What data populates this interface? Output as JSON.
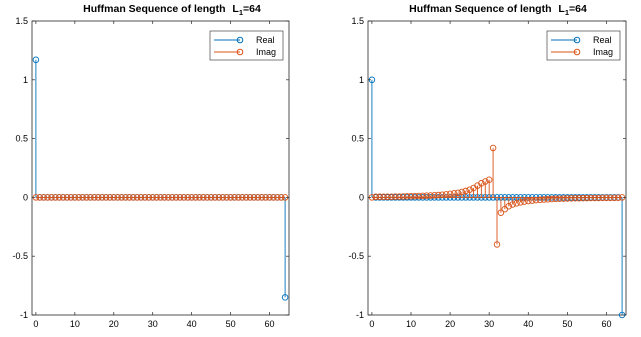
{
  "colors": {
    "real": "#0072BD",
    "imag": "#D95319",
    "axis": "#262626"
  },
  "chart_data": [
    {
      "type": "stem",
      "title": "Huffman Sequence of length",
      "title_symbol": "L",
      "title_subscript": "1",
      "title_suffix": "=64",
      "xlim": [
        -1,
        65
      ],
      "ylim": [
        -1,
        1.5
      ],
      "xticks": [
        0,
        10,
        20,
        30,
        40,
        50,
        60
      ],
      "yticks": [
        -1,
        -0.5,
        0,
        0.5,
        1,
        1.5
      ],
      "xtick_labels": [
        "0",
        "10",
        "20",
        "30",
        "40",
        "50",
        "60"
      ],
      "ytick_labels": [
        "-1",
        "-0.5",
        "0",
        "0.5",
        "1",
        "1.5"
      ],
      "legend": {
        "position": "top-right",
        "entries": [
          "Real",
          "Imag"
        ]
      },
      "x": [
        0,
        1,
        2,
        3,
        4,
        5,
        6,
        7,
        8,
        9,
        10,
        11,
        12,
        13,
        14,
        15,
        16,
        17,
        18,
        19,
        20,
        21,
        22,
        23,
        24,
        25,
        26,
        27,
        28,
        29,
        30,
        31,
        32,
        33,
        34,
        35,
        36,
        37,
        38,
        39,
        40,
        41,
        42,
        43,
        44,
        45,
        46,
        47,
        48,
        49,
        50,
        51,
        52,
        53,
        54,
        55,
        56,
        57,
        58,
        59,
        60,
        61,
        62,
        63,
        64
      ],
      "series": [
        {
          "name": "Real",
          "values": [
            1.17,
            0,
            0,
            0,
            0,
            0,
            0,
            0,
            0,
            0,
            0,
            0,
            0,
            0,
            0,
            0,
            0,
            0,
            0,
            0,
            0,
            0,
            0,
            0,
            0,
            0,
            0,
            0,
            0,
            0,
            0,
            0,
            0,
            0,
            0,
            0,
            0,
            0,
            0,
            0,
            0,
            0,
            0,
            0,
            0,
            0,
            0,
            0,
            0,
            0,
            0,
            0,
            0,
            0,
            0,
            0,
            0,
            0,
            0,
            0,
            0,
            0,
            0,
            0,
            -0.85
          ]
        },
        {
          "name": "Imag",
          "values": [
            0,
            0,
            0,
            0,
            0,
            0,
            0,
            0,
            0,
            0,
            0,
            0,
            0,
            0,
            0,
            0,
            0,
            0,
            0,
            0,
            0,
            0,
            0,
            0,
            0,
            0,
            0,
            0,
            0,
            0,
            0,
            0,
            0,
            0,
            0,
            0,
            0,
            0,
            0,
            0,
            0,
            0,
            0,
            0,
            0,
            0,
            0,
            0,
            0,
            0,
            0,
            0,
            0,
            0,
            0,
            0,
            0,
            0,
            0,
            0,
            0,
            0,
            0,
            0,
            0
          ]
        }
      ]
    },
    {
      "type": "stem",
      "title": "Huffman Sequence of length",
      "title_symbol": "L",
      "title_subscript": "1",
      "title_suffix": "=64",
      "xlim": [
        -1,
        65
      ],
      "ylim": [
        -1,
        1.5
      ],
      "xticks": [
        0,
        10,
        20,
        30,
        40,
        50,
        60
      ],
      "yticks": [
        -1,
        -0.5,
        0,
        0.5,
        1,
        1.5
      ],
      "xtick_labels": [
        "0",
        "10",
        "20",
        "30",
        "40",
        "50",
        "60"
      ],
      "ytick_labels": [
        "-1",
        "-0.5",
        "0",
        "0.5",
        "1",
        "1.5"
      ],
      "legend": {
        "position": "top-right",
        "entries": [
          "Real",
          "Imag"
        ]
      },
      "x": [
        0,
        1,
        2,
        3,
        4,
        5,
        6,
        7,
        8,
        9,
        10,
        11,
        12,
        13,
        14,
        15,
        16,
        17,
        18,
        19,
        20,
        21,
        22,
        23,
        24,
        25,
        26,
        27,
        28,
        29,
        30,
        31,
        32,
        33,
        34,
        35,
        36,
        37,
        38,
        39,
        40,
        41,
        42,
        43,
        44,
        45,
        46,
        47,
        48,
        49,
        50,
        51,
        52,
        53,
        54,
        55,
        56,
        57,
        58,
        59,
        60,
        61,
        62,
        63,
        64
      ],
      "series": [
        {
          "name": "Real",
          "values": [
            1.0,
            0,
            0,
            0,
            0,
            0,
            0,
            0,
            0,
            0,
            0,
            0,
            0,
            0,
            0,
            0,
            0,
            0,
            0,
            0,
            0,
            0,
            0,
            0,
            0,
            0,
            0,
            0,
            0,
            0,
            0,
            0,
            0,
            0,
            0,
            0,
            0,
            0,
            0,
            0,
            0,
            0,
            0,
            0,
            0,
            0,
            0,
            0,
            0,
            0,
            0,
            0,
            0,
            0,
            0,
            0,
            0,
            0,
            0,
            0,
            0,
            0,
            0,
            0,
            -1.0
          ]
        },
        {
          "name": "Imag",
          "values": [
            0,
            0.005,
            0.005,
            0.005,
            0.006,
            0.006,
            0.007,
            0.007,
            0.008,
            0.009,
            0.01,
            0.011,
            0.012,
            0.013,
            0.015,
            0.016,
            0.018,
            0.02,
            0.023,
            0.026,
            0.03,
            0.034,
            0.039,
            0.046,
            0.055,
            0.065,
            0.08,
            0.1,
            0.12,
            0.135,
            0.15,
            0.42,
            -0.4,
            -0.13,
            -0.1,
            -0.075,
            -0.06,
            -0.05,
            -0.042,
            -0.036,
            -0.031,
            -0.027,
            -0.023,
            -0.02,
            -0.018,
            -0.016,
            -0.014,
            -0.012,
            -0.011,
            -0.01,
            -0.009,
            -0.008,
            -0.007,
            -0.007,
            -0.006,
            -0.006,
            -0.005,
            -0.005,
            -0.005,
            -0.004,
            -0.004,
            -0.004,
            -0.004,
            -0.003,
            0
          ]
        }
      ]
    }
  ]
}
